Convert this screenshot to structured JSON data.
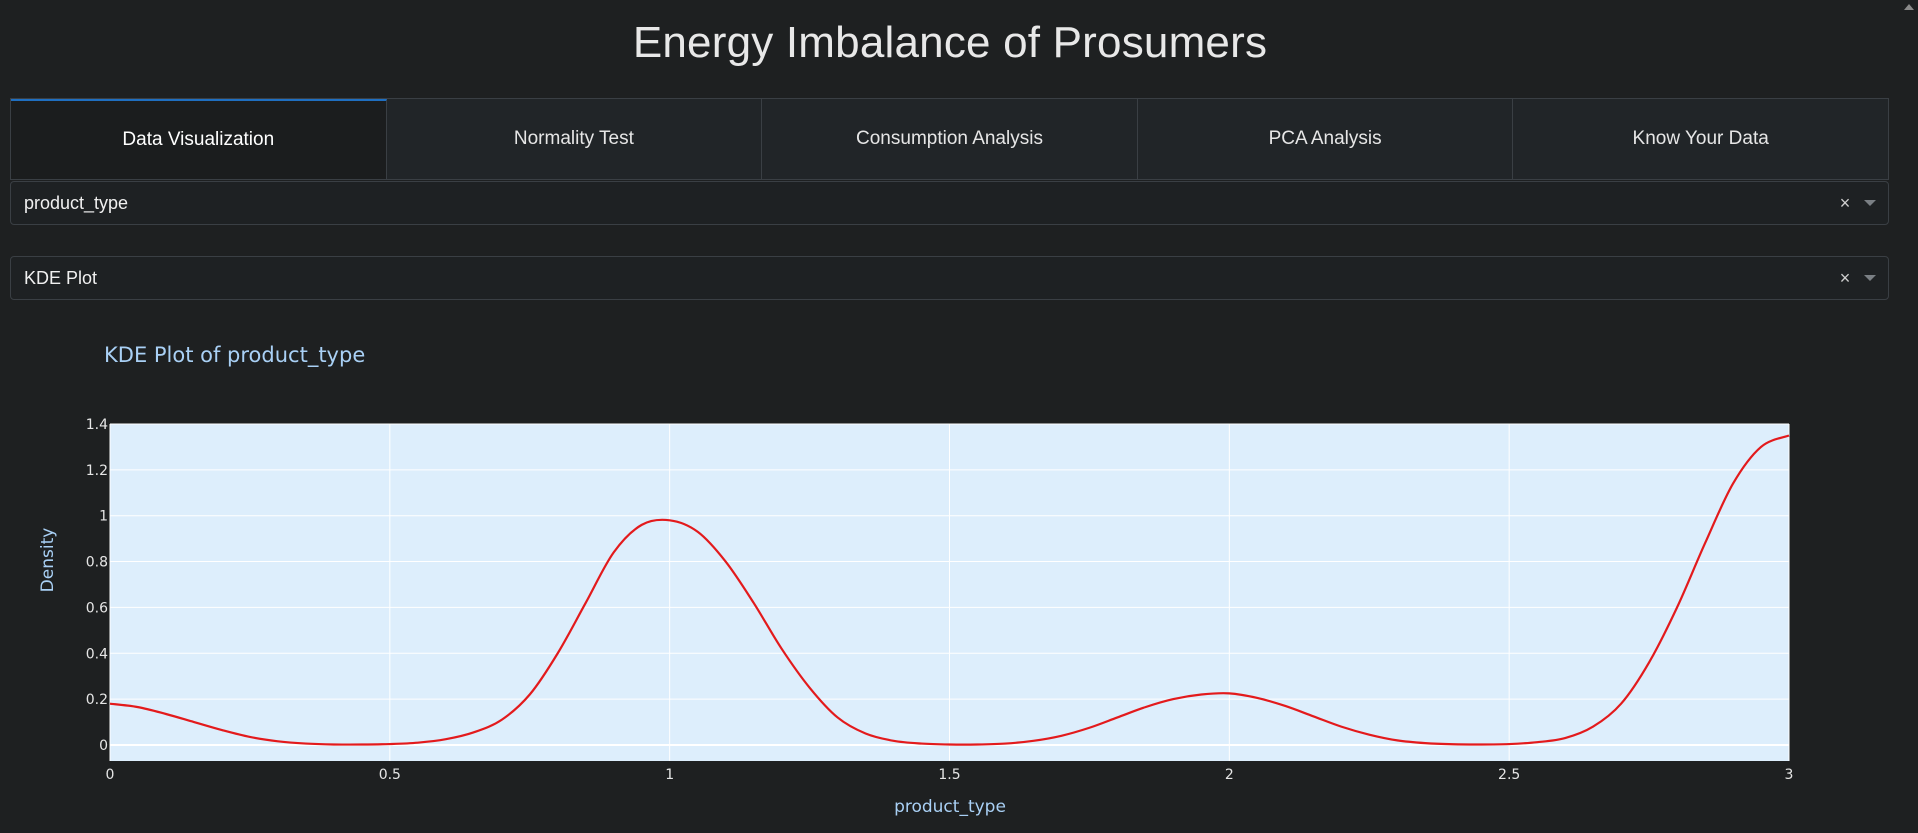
{
  "app": {
    "title": "Energy Imbalance of Prosumers"
  },
  "tabs": [
    {
      "label": "Data Visualization",
      "active": true
    },
    {
      "label": "Normality Test",
      "active": false
    },
    {
      "label": "Consumption Analysis",
      "active": false
    },
    {
      "label": "PCA Analysis",
      "active": false
    },
    {
      "label": "Know Your Data",
      "active": false
    }
  ],
  "dropdowns": {
    "variable": {
      "value": "product_type",
      "clear_icon": "close-icon",
      "caret_icon": "chevron-down-icon"
    },
    "plot_type": {
      "value": "KDE Plot",
      "clear_icon": "close-icon",
      "caret_icon": "chevron-down-icon"
    }
  },
  "colors": {
    "background": "#1e2021",
    "plot_background": "#ddeefc",
    "line": "#e31a1c",
    "title_text": "#a9d0f5",
    "active_tab_accent": "#1f6fc1"
  },
  "chart_data": {
    "type": "line",
    "title": "KDE Plot of product_type",
    "xlabel": "product_type",
    "ylabel": "Density",
    "xlim": [
      0,
      3
    ],
    "ylim": [
      -0.07,
      1.4
    ],
    "grid": true,
    "xticks": [
      0,
      0.5,
      1,
      1.5,
      2,
      2.5,
      3
    ],
    "xtick_labels": [
      "0",
      "0.5",
      "1",
      "1.5",
      "2",
      "2.5",
      "3"
    ],
    "yticks": [
      0,
      0.2,
      0.4,
      0.6,
      0.8,
      1,
      1.2,
      1.4
    ],
    "ytick_labels": [
      "0",
      "0.2",
      "0.4",
      "0.6",
      "0.8",
      "1",
      "1.2",
      "1.4"
    ],
    "series": [
      {
        "color": "#e31a1c",
        "x": [
          0,
          0.05,
          0.1,
          0.15,
          0.2,
          0.25,
          0.3,
          0.35,
          0.4,
          0.45,
          0.5,
          0.55,
          0.6,
          0.65,
          0.7,
          0.75,
          0.8,
          0.85,
          0.9,
          0.95,
          1.0,
          1.05,
          1.1,
          1.15,
          1.2,
          1.25,
          1.3,
          1.35,
          1.4,
          1.45,
          1.5,
          1.55,
          1.6,
          1.65,
          1.7,
          1.75,
          1.8,
          1.85,
          1.9,
          1.95,
          2.0,
          2.05,
          2.1,
          2.15,
          2.2,
          2.25,
          2.3,
          2.35,
          2.4,
          2.45,
          2.5,
          2.55,
          2.6,
          2.65,
          2.7,
          2.75,
          2.8,
          2.85,
          2.9,
          2.95,
          3.0
        ],
        "y": [
          0.18,
          0.165,
          0.135,
          0.1,
          0.065,
          0.035,
          0.016,
          0.006,
          0.002,
          0.002,
          0.004,
          0.01,
          0.025,
          0.055,
          0.11,
          0.22,
          0.4,
          0.62,
          0.84,
          0.96,
          0.98,
          0.93,
          0.8,
          0.62,
          0.42,
          0.25,
          0.12,
          0.05,
          0.018,
          0.006,
          0.002,
          0.002,
          0.006,
          0.018,
          0.04,
          0.075,
          0.12,
          0.165,
          0.2,
          0.22,
          0.225,
          0.205,
          0.17,
          0.125,
          0.08,
          0.045,
          0.02,
          0.008,
          0.003,
          0.002,
          0.004,
          0.012,
          0.03,
          0.08,
          0.18,
          0.36,
          0.6,
          0.88,
          1.14,
          1.3,
          1.35
        ]
      }
    ]
  }
}
